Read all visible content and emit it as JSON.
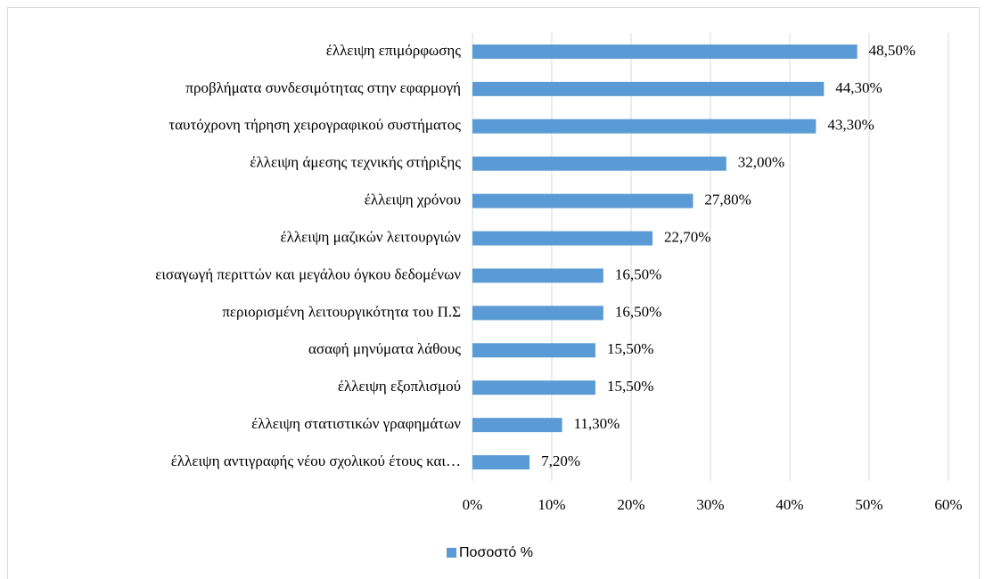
{
  "chart_data": {
    "type": "bar",
    "categories": [
      "έλλειψη επιμόρφωσης",
      "προβλήματα συνδεσιμότητας στην εφαρμογή",
      "ταυτόχρονη τήρηση χειρογραφικού συστήματος",
      "έλλειψη άμεσης τεχνικής στήριξης",
      "έλλειψη χρόνου",
      "έλλειψη μαζικών λειτουργιών",
      "εισαγωγή περιττών και μεγάλου όγκου δεδομένων",
      "περιορισμένη λειτουργικότητα του Π.Σ",
      "ασαφή μηνύματα λάθους",
      "έλλειψη εξοπλισμού",
      "έλλειψη στατιστικών γραφημάτων",
      "έλλειψη αντιγραφής νέου σχολικού έτους και…"
    ],
    "series": [
      {
        "name": "Ποσοστό %",
        "color": "#5b9bd5",
        "values": [
          48.5,
          44.3,
          43.3,
          32.0,
          27.8,
          22.7,
          16.5,
          16.5,
          15.5,
          15.5,
          11.3,
          7.2
        ],
        "value_labels": [
          "48,50%",
          "44,30%",
          "43,30%",
          "32,00%",
          "27,80%",
          "22,70%",
          "16,50%",
          "16,50%",
          "15,50%",
          "15,50%",
          "11,30%",
          "7,20%"
        ]
      }
    ],
    "xlim": [
      0,
      60
    ],
    "xticks": [
      {
        "value": 0,
        "label": "0%"
      },
      {
        "value": 10,
        "label": "10%"
      },
      {
        "value": 20,
        "label": "20%"
      },
      {
        "value": 30,
        "label": "30%"
      },
      {
        "value": 40,
        "label": "40%"
      },
      {
        "value": 50,
        "label": "50%"
      },
      {
        "value": 60,
        "label": "60%"
      }
    ],
    "grid": true,
    "legend": "bottom"
  }
}
